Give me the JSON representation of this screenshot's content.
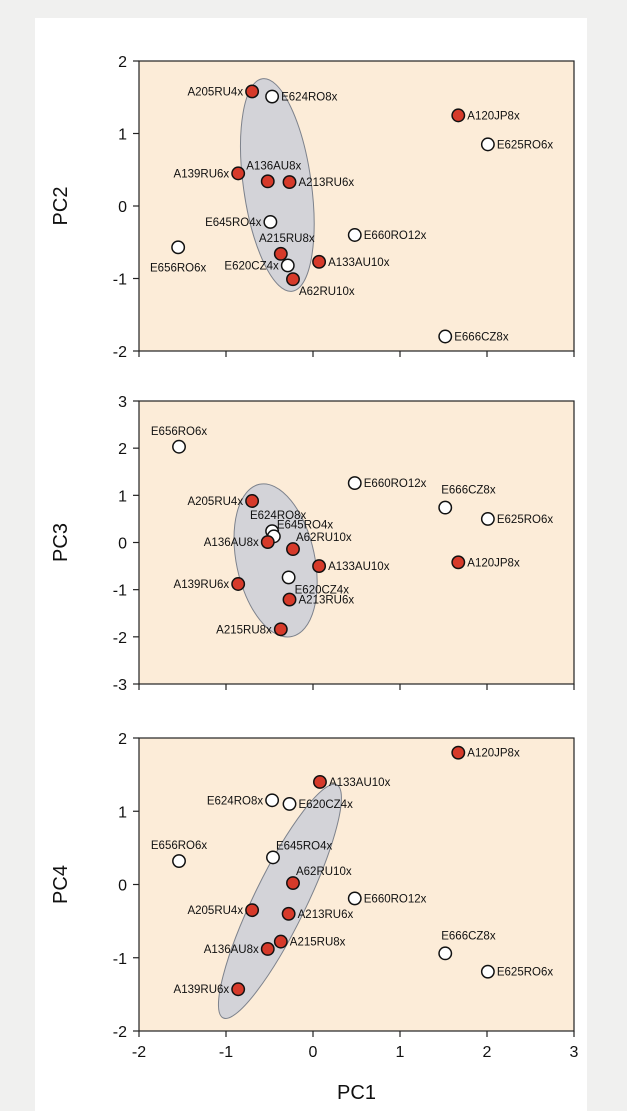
{
  "chart_data": [
    {
      "type": "scatter",
      "xlabel": "",
      "ylabel": "PC2",
      "xlim": [
        -2,
        3
      ],
      "ylim": [
        -2,
        2
      ],
      "yticks": [
        "-2",
        "-1",
        "0",
        "1",
        "2"
      ],
      "xticks": [],
      "colors": {
        "filled": "#d63a2a",
        "open": "#ffffff",
        "background": "#fcecd8",
        "ellipse": "#cbcfd8"
      },
      "ellipse": {
        "center": [
          -0.41,
          0.29
        ],
        "radii": [
          0.39,
          1.48
        ],
        "angle_deg": -8
      },
      "points": [
        {
          "label": "A205RU4x",
          "x": -0.7,
          "y": 1.58,
          "filled": true,
          "anchor": "left"
        },
        {
          "label": "E624RO8x",
          "x": -0.47,
          "y": 1.51,
          "filled": false,
          "anchor": "right"
        },
        {
          "label": "A120JP8x",
          "x": 1.67,
          "y": 1.25,
          "filled": true,
          "anchor": "right"
        },
        {
          "label": "E625RO6x",
          "x": 2.01,
          "y": 0.85,
          "filled": false,
          "anchor": "right"
        },
        {
          "label": "A136AU8x",
          "x": -0.52,
          "y": 0.34,
          "filled": true,
          "anchor": "label-above"
        },
        {
          "label": "A139RU6x",
          "x": -0.86,
          "y": 0.45,
          "filled": true,
          "anchor": "left"
        },
        {
          "label": "A213RU6x",
          "x": -0.27,
          "y": 0.33,
          "filled": true,
          "anchor": "right"
        },
        {
          "label": "E645RO4x",
          "x": -0.49,
          "y": -0.22,
          "filled": false,
          "anchor": "left"
        },
        {
          "label": "E660RO12x",
          "x": 0.48,
          "y": -0.4,
          "filled": false,
          "anchor": "right"
        },
        {
          "label": "E656RO6x",
          "x": -1.55,
          "y": -0.57,
          "filled": false,
          "anchor": "below"
        },
        {
          "label": "A215RU8x",
          "x": -0.37,
          "y": -0.66,
          "filled": true,
          "anchor": "label-above"
        },
        {
          "label": "E620CZ4x",
          "x": -0.29,
          "y": -0.82,
          "filled": false,
          "anchor": "left"
        },
        {
          "label": "A133AU10x",
          "x": 0.07,
          "y": -0.77,
          "filled": true,
          "anchor": "right"
        },
        {
          "label": "A62RU10x",
          "x": -0.23,
          "y": -1.01,
          "filled": true,
          "anchor": "below-right"
        },
        {
          "label": "E666CZ8x",
          "x": 1.52,
          "y": -1.8,
          "filled": false,
          "anchor": "right"
        }
      ]
    },
    {
      "type": "scatter",
      "xlabel": "",
      "ylabel": "PC3",
      "xlim": [
        -2,
        3
      ],
      "ylim": [
        -3,
        3
      ],
      "yticks": [
        "-3",
        "-2",
        "-1",
        "0",
        "1",
        "2",
        "3"
      ],
      "xticks": [],
      "colors": {
        "filled": "#d63a2a",
        "open": "#ffffff",
        "background": "#fcecd8",
        "ellipse": "#cbcfd8"
      },
      "ellipse": {
        "center": [
          -0.43,
          -0.38
        ],
        "radii": [
          0.45,
          1.65
        ],
        "angle_deg": -12
      },
      "points": [
        {
          "label": "E656RO6x",
          "x": -1.54,
          "y": 2.03,
          "filled": false,
          "anchor": "above"
        },
        {
          "label": "E660RO12x",
          "x": 0.48,
          "y": 1.26,
          "filled": false,
          "anchor": "right"
        },
        {
          "label": "A205RU4x",
          "x": -0.7,
          "y": 0.88,
          "filled": true,
          "anchor": "left"
        },
        {
          "label": "E666CZ8x",
          "x": 1.52,
          "y": 0.74,
          "filled": false,
          "anchor": "above-right"
        },
        {
          "label": "E625RO6x",
          "x": 2.01,
          "y": 0.5,
          "filled": false,
          "anchor": "right"
        },
        {
          "label": "E624RO8x",
          "x": -0.47,
          "y": 0.24,
          "filled": false,
          "anchor": "label-above"
        },
        {
          "label": "E645RO4x",
          "x": -0.45,
          "y": 0.13,
          "filled": false,
          "anchor": "label-above-right"
        },
        {
          "label": "A136AU8x",
          "x": -0.52,
          "y": 0.01,
          "filled": true,
          "anchor": "left"
        },
        {
          "label": "A62RU10x",
          "x": -0.23,
          "y": -0.14,
          "filled": true,
          "anchor": "label-above-right"
        },
        {
          "label": "A133AU10x",
          "x": 0.07,
          "y": -0.5,
          "filled": true,
          "anchor": "right"
        },
        {
          "label": "A120JP8x",
          "x": 1.67,
          "y": -0.42,
          "filled": true,
          "anchor": "right"
        },
        {
          "label": "E620CZ4x",
          "x": -0.28,
          "y": -0.74,
          "filled": false,
          "anchor": "below-right"
        },
        {
          "label": "A139RU6x",
          "x": -0.86,
          "y": -0.88,
          "filled": true,
          "anchor": "left"
        },
        {
          "label": "A213RU6x",
          "x": -0.27,
          "y": -1.21,
          "filled": true,
          "anchor": "right"
        },
        {
          "label": "A215RU8x",
          "x": -0.37,
          "y": -1.84,
          "filled": true,
          "anchor": "left"
        }
      ]
    },
    {
      "type": "scatter",
      "xlabel": "PC1",
      "ylabel": "PC4",
      "xlim": [
        -2,
        3
      ],
      "ylim": [
        -2,
        2
      ],
      "yticks": [
        "-2",
        "-1",
        "0",
        "1",
        "2"
      ],
      "xticks": [
        "-2",
        "-1",
        "0",
        "1",
        "2",
        "3"
      ],
      "colors": {
        "filled": "#d63a2a",
        "open": "#ffffff",
        "background": "#fcecd8",
        "ellipse": "#cbcfd8"
      },
      "ellipse": {
        "center": [
          -0.38,
          -0.23
        ],
        "radii": [
          0.3,
          1.77
        ],
        "angle_deg": 26
      },
      "points": [
        {
          "label": "A120JP8x",
          "x": 1.67,
          "y": 1.8,
          "filled": true,
          "anchor": "right"
        },
        {
          "label": "A133AU10x",
          "x": 0.08,
          "y": 1.4,
          "filled": true,
          "anchor": "right"
        },
        {
          "label": "E624RO8x",
          "x": -0.47,
          "y": 1.15,
          "filled": false,
          "anchor": "left"
        },
        {
          "label": "E620CZ4x",
          "x": -0.27,
          "y": 1.1,
          "filled": false,
          "anchor": "right"
        },
        {
          "label": "E656RO6x",
          "x": -1.54,
          "y": 0.32,
          "filled": false,
          "anchor": "above"
        },
        {
          "label": "E645RO4x",
          "x": -0.46,
          "y": 0.37,
          "filled": false,
          "anchor": "label-above-right"
        },
        {
          "label": "A62RU10x",
          "x": -0.23,
          "y": 0.02,
          "filled": true,
          "anchor": "label-above-right"
        },
        {
          "label": "E660RO12x",
          "x": 0.48,
          "y": -0.19,
          "filled": false,
          "anchor": "right"
        },
        {
          "label": "A205RU4x",
          "x": -0.7,
          "y": -0.35,
          "filled": true,
          "anchor": "left"
        },
        {
          "label": "A213RU6x",
          "x": -0.28,
          "y": -0.4,
          "filled": true,
          "anchor": "right"
        },
        {
          "label": "A215RU8x",
          "x": -0.37,
          "y": -0.78,
          "filled": true,
          "anchor": "right"
        },
        {
          "label": "A136AU8x",
          "x": -0.52,
          "y": -0.88,
          "filled": true,
          "anchor": "left"
        },
        {
          "label": "E666CZ8x",
          "x": 1.52,
          "y": -0.94,
          "filled": false,
          "anchor": "above-right"
        },
        {
          "label": "E625RO6x",
          "x": 2.01,
          "y": -1.19,
          "filled": false,
          "anchor": "right"
        },
        {
          "label": "A139RU6x",
          "x": -0.86,
          "y": -1.43,
          "filled": true,
          "anchor": "left"
        }
      ]
    }
  ]
}
